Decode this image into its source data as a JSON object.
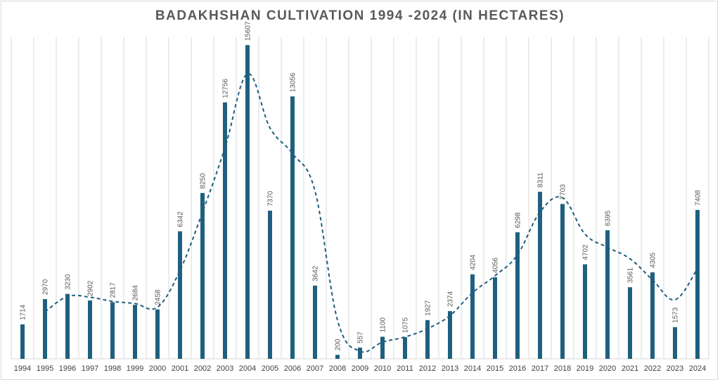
{
  "chart_data": {
    "type": "bar",
    "title": "BADAKHSHAN CULTIVATION 1994 -2024 (IN HECTARES)",
    "xlabel": "",
    "ylabel": "",
    "categories": [
      "1994",
      "1995",
      "1996",
      "1997",
      "1998",
      "1999",
      "2000",
      "2001",
      "2002",
      "2003",
      "2004",
      "2005",
      "2006",
      "2007",
      "2008",
      "2009",
      "2010",
      "2011",
      "2012",
      "2013",
      "2014",
      "2015",
      "2016",
      "2017",
      "2018",
      "2019",
      "2020",
      "2021",
      "2022",
      "2023",
      "2024"
    ],
    "values": [
      1714,
      2970,
      3230,
      2902,
      2817,
      2684,
      2458,
      6342,
      8250,
      12756,
      15607,
      7370,
      13056,
      3642,
      200,
      557,
      1100,
      1075,
      1927,
      2374,
      4204,
      4056,
      6298,
      8311,
      7703,
      4702,
      6395,
      3561,
      4305,
      1573,
      7408
    ],
    "trendline": {
      "type": "moving-average",
      "period": 2,
      "style": "dashed"
    },
    "ylim": [
      0,
      16000
    ],
    "grid": "vertical",
    "legend": "none",
    "colors": {
      "bar": "#1f5f7f",
      "trend": "#1f5f7f",
      "grid": "#d9d9d9",
      "title": "#595959"
    }
  }
}
